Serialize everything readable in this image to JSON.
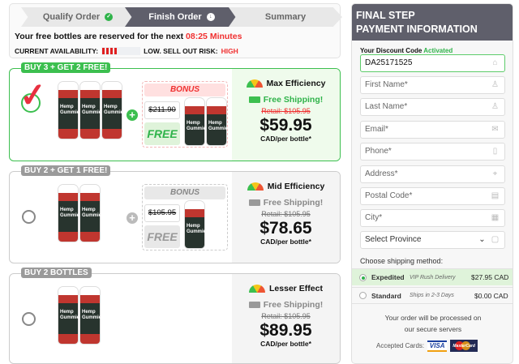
{
  "steps": [
    {
      "label": "Qualify Order",
      "state": "done"
    },
    {
      "label": "Finish Order",
      "state": "active"
    },
    {
      "label": "Summary",
      "state": "pending"
    }
  ],
  "reserve": {
    "text": "Your free bottles are reserved for the next",
    "time": "08:25 Minutes"
  },
  "availability": {
    "label": "CURRENT AVAILABILITY:",
    "risk_label": "LOW. SELL OUT RISK:",
    "risk": "HIGH",
    "level_bars": 4
  },
  "packages": [
    {
      "badge": "BUY 3 + GET 2 FREE!",
      "selected": true,
      "bottles": 3,
      "bonus_label": "BONUS",
      "bonus_old": "$211.90",
      "bonus_free": "FREE",
      "efficiency": "Max Efficiency",
      "shipping": "Free Shipping!",
      "retail": "Retail: $105.95",
      "price": "$59.95",
      "unit": "CAD/per bottle*",
      "accent": "#3cbf4f"
    },
    {
      "badge": "BUY 2 + GET 1 FREE!",
      "selected": false,
      "bottles": 2,
      "bonus_label": "BONUS",
      "bonus_old": "$105.95",
      "bonus_free": "FREE",
      "efficiency": "Mid Efficiency",
      "shipping": "Free Shipping!",
      "retail": "Retail: $105.95",
      "price": "$78.65",
      "unit": "CAD/per bottle*",
      "accent": "#9a9a9a"
    },
    {
      "badge": "BUY 2 BOTTLES",
      "selected": false,
      "bottles": 2,
      "efficiency": "Lesser Effect",
      "shipping": "Free Shipping!",
      "retail": "Retail: $105.95",
      "price": "$89.95",
      "unit": "CAD/per bottle*",
      "accent": "#9a9a9a"
    }
  ],
  "bottle_text": "Hemp Gummies",
  "payment": {
    "title1": "FINAL STEP",
    "title2": "PAYMENT INFORMATION",
    "discount_label": "Your Discount Code",
    "discount_status": "Activated",
    "discount_code": "DA25171525",
    "fields": [
      {
        "placeholder": "First Name*",
        "icon": "user-icon"
      },
      {
        "placeholder": "Last Name*",
        "icon": "user-icon"
      },
      {
        "placeholder": "Email*",
        "icon": "mail-icon"
      },
      {
        "placeholder": "Phone*",
        "icon": "phone-icon"
      },
      {
        "placeholder": "Address*",
        "icon": "location-icon"
      },
      {
        "placeholder": "Postal Code*",
        "icon": "postal-icon"
      },
      {
        "placeholder": "City*",
        "icon": "city-icon"
      }
    ],
    "province": "Select Province",
    "shipping_label": "Choose shipping method:",
    "shipping": [
      {
        "name": "Expedited",
        "sub": "VIP Rush Delivery",
        "price": "$27.95 CAD",
        "selected": true
      },
      {
        "name": "Standard",
        "sub": "Ships in 2-3 Days",
        "price": "$0.00 CAD",
        "selected": false
      }
    ],
    "secure1": "Your order will be processed on",
    "secure2": "our secure servers",
    "cards_label": "Accepted Cards:",
    "visa": "VISA",
    "mastercard": "MasterCard"
  },
  "colors": {
    "green": "#3cbf4f",
    "red": "#f03030",
    "dark": "#5f5f6b"
  }
}
